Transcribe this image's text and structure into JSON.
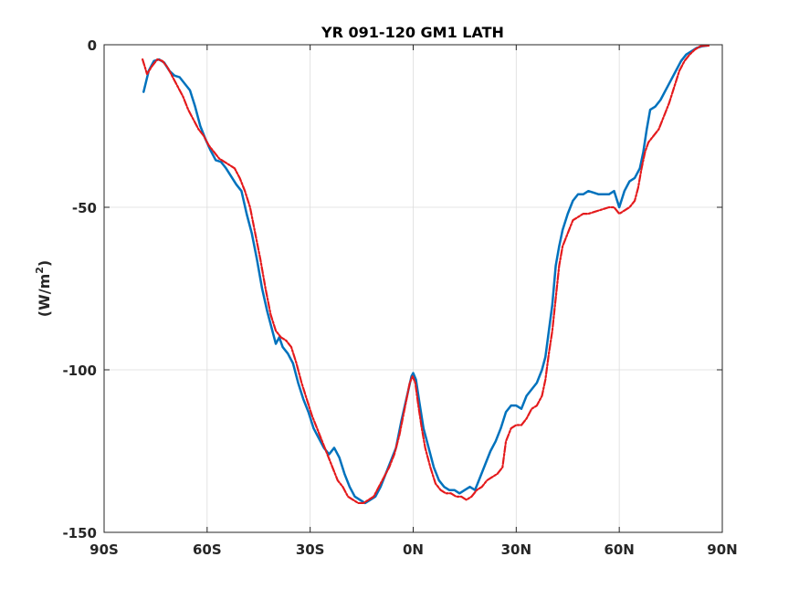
{
  "chart_data": {
    "type": "line",
    "title": "YR 091-120 GM1 LATH",
    "xlabel": "",
    "ylabel": "(W/m",
    "ylabel_sup": "2",
    "ylabel_close": ")",
    "xlim": [
      -90,
      90
    ],
    "ylim": [
      -150,
      0
    ],
    "grid": true,
    "xticks": [
      {
        "value": -90,
        "label": "90S"
      },
      {
        "value": -60,
        "label": "60S"
      },
      {
        "value": -30,
        "label": "30S"
      },
      {
        "value": 0,
        "label": "0N"
      },
      {
        "value": 30,
        "label": "30N"
      },
      {
        "value": 60,
        "label": "60N"
      },
      {
        "value": 90,
        "label": "90N"
      }
    ],
    "yticks": [
      {
        "value": 0,
        "label": "0"
      },
      {
        "value": -50,
        "label": "-50"
      },
      {
        "value": -100,
        "label": "-100"
      },
      {
        "value": -150,
        "label": "-150"
      }
    ],
    "series": [
      {
        "color": "#0072bd",
        "style": "solid",
        "points": [
          [
            -78.5,
            -14.5
          ],
          [
            -77,
            -8
          ],
          [
            -75.5,
            -5
          ],
          [
            -74,
            -4.5
          ],
          [
            -72.5,
            -5.5
          ],
          [
            -71,
            -8
          ],
          [
            -69.5,
            -9.5
          ],
          [
            -68,
            -10
          ],
          [
            -66.5,
            -12
          ],
          [
            -65,
            -14
          ],
          [
            -63.5,
            -19
          ],
          [
            -62,
            -25
          ],
          [
            -60.5,
            -29
          ],
          [
            -59,
            -32.5
          ],
          [
            -57.5,
            -35.5
          ],
          [
            -56,
            -36
          ],
          [
            -54.5,
            -38
          ],
          [
            -53,
            -40.5
          ],
          [
            -51.5,
            -43
          ],
          [
            -50,
            -45
          ],
          [
            -48.5,
            -52
          ],
          [
            -47,
            -58
          ],
          [
            -45.5,
            -66
          ],
          [
            -44,
            -75
          ],
          [
            -42.5,
            -82
          ],
          [
            -41,
            -88
          ],
          [
            -40,
            -92
          ],
          [
            -39,
            -90
          ],
          [
            -38,
            -93
          ],
          [
            -36.5,
            -95
          ],
          [
            -35,
            -98
          ],
          [
            -33.5,
            -104
          ],
          [
            -32,
            -109
          ],
          [
            -30.5,
            -113
          ],
          [
            -29,
            -118
          ],
          [
            -27.5,
            -121
          ],
          [
            -26,
            -124
          ],
          [
            -24.5,
            -126
          ],
          [
            -23,
            -124
          ],
          [
            -21.5,
            -127
          ],
          [
            -20,
            -132
          ],
          [
            -18.5,
            -136
          ],
          [
            -17,
            -139
          ],
          [
            -15.5,
            -140
          ],
          [
            -14,
            -141
          ],
          [
            -12.5,
            -140
          ],
          [
            -11,
            -139
          ],
          [
            -9.5,
            -136
          ],
          [
            -8,
            -132
          ],
          [
            -6.5,
            -128
          ],
          [
            -5,
            -124
          ],
          [
            -3.5,
            -116
          ],
          [
            -2,
            -109
          ],
          [
            -0.5,
            -102
          ],
          [
            0,
            -101
          ],
          [
            0.8,
            -103
          ],
          [
            1.8,
            -110
          ],
          [
            3,
            -118
          ],
          [
            4.5,
            -124
          ],
          [
            6,
            -130
          ],
          [
            7.5,
            -134
          ],
          [
            9,
            -136
          ],
          [
            10.5,
            -137
          ],
          [
            12,
            -137
          ],
          [
            13.5,
            -138
          ],
          [
            15,
            -137
          ],
          [
            16.5,
            -136
          ],
          [
            18,
            -137
          ],
          [
            19.5,
            -133
          ],
          [
            21,
            -129
          ],
          [
            22.5,
            -125
          ],
          [
            24,
            -122
          ],
          [
            25.5,
            -118
          ],
          [
            27,
            -113
          ],
          [
            28.5,
            -111
          ],
          [
            30,
            -111
          ],
          [
            31.5,
            -112
          ],
          [
            33,
            -108
          ],
          [
            34.5,
            -106
          ],
          [
            36,
            -104
          ],
          [
            37.5,
            -100
          ],
          [
            38.5,
            -96
          ],
          [
            39.5,
            -88
          ],
          [
            40.5,
            -80
          ],
          [
            41.5,
            -68
          ],
          [
            42.5,
            -62
          ],
          [
            43.5,
            -57
          ],
          [
            45,
            -52
          ],
          [
            46.5,
            -48
          ],
          [
            48,
            -46
          ],
          [
            49.5,
            -46
          ],
          [
            51,
            -45
          ],
          [
            52.5,
            -45.5
          ],
          [
            54,
            -46
          ],
          [
            55.5,
            -46
          ],
          [
            57,
            -46
          ],
          [
            58.5,
            -45
          ],
          [
            60,
            -50
          ],
          [
            61.5,
            -45
          ],
          [
            63,
            -42
          ],
          [
            64.5,
            -41
          ],
          [
            66,
            -38
          ],
          [
            67,
            -33
          ],
          [
            68,
            -26
          ],
          [
            69,
            -20
          ],
          [
            70.5,
            -19
          ],
          [
            72,
            -17
          ],
          [
            73.5,
            -14
          ],
          [
            75,
            -11
          ],
          [
            76.5,
            -8
          ],
          [
            78,
            -5
          ],
          [
            79.5,
            -3
          ],
          [
            81,
            -2
          ],
          [
            82.5,
            -1
          ],
          [
            84,
            -0.5
          ],
          [
            85.5,
            -0.3
          ]
        ]
      },
      {
        "color": "#e41a1c",
        "style": "dashed",
        "points": [
          [
            -78.8,
            -4.5
          ],
          [
            -77.5,
            -9
          ],
          [
            -76,
            -6.5
          ],
          [
            -74.5,
            -4.5
          ],
          [
            -73,
            -5
          ],
          [
            -71.5,
            -7
          ],
          [
            -70,
            -10
          ],
          [
            -68.5,
            -13
          ],
          [
            -67,
            -16
          ],
          [
            -65.5,
            -20
          ],
          [
            -64,
            -23
          ],
          [
            -62.5,
            -26
          ],
          [
            -61,
            -28
          ],
          [
            -59.5,
            -31
          ],
          [
            -58,
            -33
          ],
          [
            -56.5,
            -35
          ],
          [
            -55,
            -36
          ],
          [
            -53.5,
            -37
          ],
          [
            -52,
            -38
          ],
          [
            -50.5,
            -41
          ],
          [
            -49,
            -45
          ],
          [
            -47.5,
            -50
          ],
          [
            -46,
            -58
          ],
          [
            -44.5,
            -66
          ],
          [
            -43,
            -75
          ],
          [
            -41.5,
            -83
          ],
          [
            -40,
            -88
          ],
          [
            -38.5,
            -90
          ],
          [
            -37,
            -91
          ],
          [
            -35.5,
            -93
          ],
          [
            -34,
            -98
          ],
          [
            -32.5,
            -104
          ],
          [
            -31,
            -109
          ],
          [
            -29.5,
            -114
          ],
          [
            -28,
            -118
          ],
          [
            -26.5,
            -122
          ],
          [
            -25,
            -126
          ],
          [
            -23.5,
            -130
          ],
          [
            -22,
            -134
          ],
          [
            -20.5,
            -136
          ],
          [
            -19,
            -139
          ],
          [
            -17.5,
            -140
          ],
          [
            -16,
            -141
          ],
          [
            -14.5,
            -141
          ],
          [
            -13,
            -140
          ],
          [
            -11.5,
            -139
          ],
          [
            -10,
            -136
          ],
          [
            -8.5,
            -133
          ],
          [
            -7,
            -130
          ],
          [
            -5.5,
            -126
          ],
          [
            -4,
            -120
          ],
          [
            -2.5,
            -112
          ],
          [
            -1,
            -104
          ],
          [
            -0.2,
            -102
          ],
          [
            0.6,
            -104
          ],
          [
            1.5,
            -111
          ],
          [
            2.5,
            -118
          ],
          [
            3.5,
            -124
          ],
          [
            5,
            -130
          ],
          [
            6.5,
            -135
          ],
          [
            8,
            -137
          ],
          [
            9.5,
            -138
          ],
          [
            11,
            -138
          ],
          [
            12.5,
            -139
          ],
          [
            14,
            -139
          ],
          [
            15.5,
            -140
          ],
          [
            17,
            -139
          ],
          [
            18.5,
            -137
          ],
          [
            20,
            -136
          ],
          [
            21.5,
            -134
          ],
          [
            23,
            -133
          ],
          [
            24.5,
            -132
          ],
          [
            26,
            -130
          ],
          [
            27,
            -122
          ],
          [
            28.5,
            -118
          ],
          [
            30,
            -117
          ],
          [
            31.5,
            -117
          ],
          [
            33,
            -115
          ],
          [
            34.5,
            -112
          ],
          [
            36,
            -111
          ],
          [
            37.5,
            -108
          ],
          [
            38.5,
            -103
          ],
          [
            39.5,
            -95
          ],
          [
            40.5,
            -88
          ],
          [
            41.5,
            -78
          ],
          [
            42.5,
            -68
          ],
          [
            43.5,
            -62
          ],
          [
            45,
            -58
          ],
          [
            46.5,
            -54
          ],
          [
            48,
            -53
          ],
          [
            49.5,
            -52
          ],
          [
            51,
            -52
          ],
          [
            52.5,
            -51.5
          ],
          [
            54,
            -51
          ],
          [
            55.5,
            -50.5
          ],
          [
            57,
            -50
          ],
          [
            58.5,
            -50
          ],
          [
            60,
            -52
          ],
          [
            61.5,
            -51
          ],
          [
            63,
            -50
          ],
          [
            64.5,
            -48
          ],
          [
            65.5,
            -44
          ],
          [
            66.5,
            -38
          ],
          [
            67.5,
            -33
          ],
          [
            68.5,
            -30
          ],
          [
            70,
            -28
          ],
          [
            71.5,
            -26
          ],
          [
            73,
            -22
          ],
          [
            74.5,
            -18
          ],
          [
            76,
            -13
          ],
          [
            77.5,
            -8
          ],
          [
            79,
            -5
          ],
          [
            80.5,
            -3
          ],
          [
            82,
            -1.5
          ],
          [
            83.5,
            -0.5
          ],
          [
            85,
            -0.3
          ],
          [
            86,
            -0.3
          ]
        ]
      }
    ]
  }
}
